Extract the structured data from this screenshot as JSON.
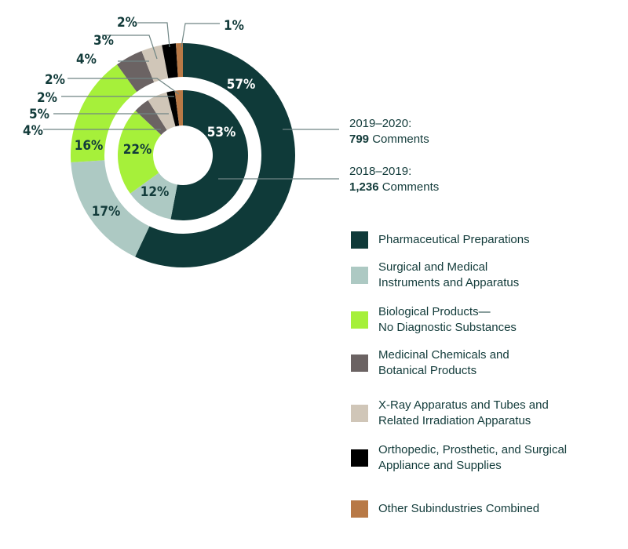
{
  "chart_data": {
    "type": "donut",
    "categories": [
      "Pharmaceutical Preparations",
      "Surgical and Medical Instruments and Apparatus",
      "Biological Products—No Diagnostic Substances",
      "Medicinal Chemicals and Botanical Products",
      "X-Ray Apparatus and Tubes and Related Irradiation Apparatus",
      "Orthopedic, Prosthetic, and Surgical Appliance and Supplies",
      "Other Subindustries Combined"
    ],
    "colors": [
      "#0f3a39",
      "#adc9c3",
      "#a6f03a",
      "#6b6363",
      "#d0c6b8",
      "#000000",
      "#b87946"
    ],
    "series": [
      {
        "name": "2019–2020",
        "ring": "outer",
        "values": [
          57,
          17,
          16,
          4,
          3,
          2,
          1
        ],
        "labels": [
          "57%",
          "17%",
          "16%",
          "4%",
          "3%",
          "2%",
          "1%"
        ]
      },
      {
        "name": "2018–2019",
        "ring": "inner",
        "values": [
          53,
          12,
          22,
          4,
          5,
          2,
          2
        ],
        "labels": [
          "53%",
          "12%",
          "22%",
          "4%",
          "5%",
          "2%",
          "2%"
        ]
      }
    ]
  },
  "callouts": [
    {
      "period": "2019–2020:",
      "count": "799",
      "unit": " Comments"
    },
    {
      "period": "2018–2019:",
      "count": "1,236",
      "unit": " Comments"
    }
  ],
  "legend": [
    {
      "label_lines": [
        "Pharmaceutical Preparations"
      ]
    },
    {
      "label_lines": [
        "Surgical and Medical",
        "Instruments and Apparatus"
      ]
    },
    {
      "label_lines": [
        "Biological Products—",
        "No Diagnostic Substances"
      ]
    },
    {
      "label_lines": [
        "Medicinal Chemicals and",
        "Botanical Products"
      ]
    },
    {
      "label_lines": [
        "X-Ray Apparatus and Tubes and",
        "Related Irradiation Apparatus"
      ]
    },
    {
      "label_lines": [
        "Orthopedic, Prosthetic, and Surgical",
        "Appliance and Supplies"
      ]
    },
    {
      "label_lines": [
        "Other Subindustries Combined"
      ]
    }
  ]
}
